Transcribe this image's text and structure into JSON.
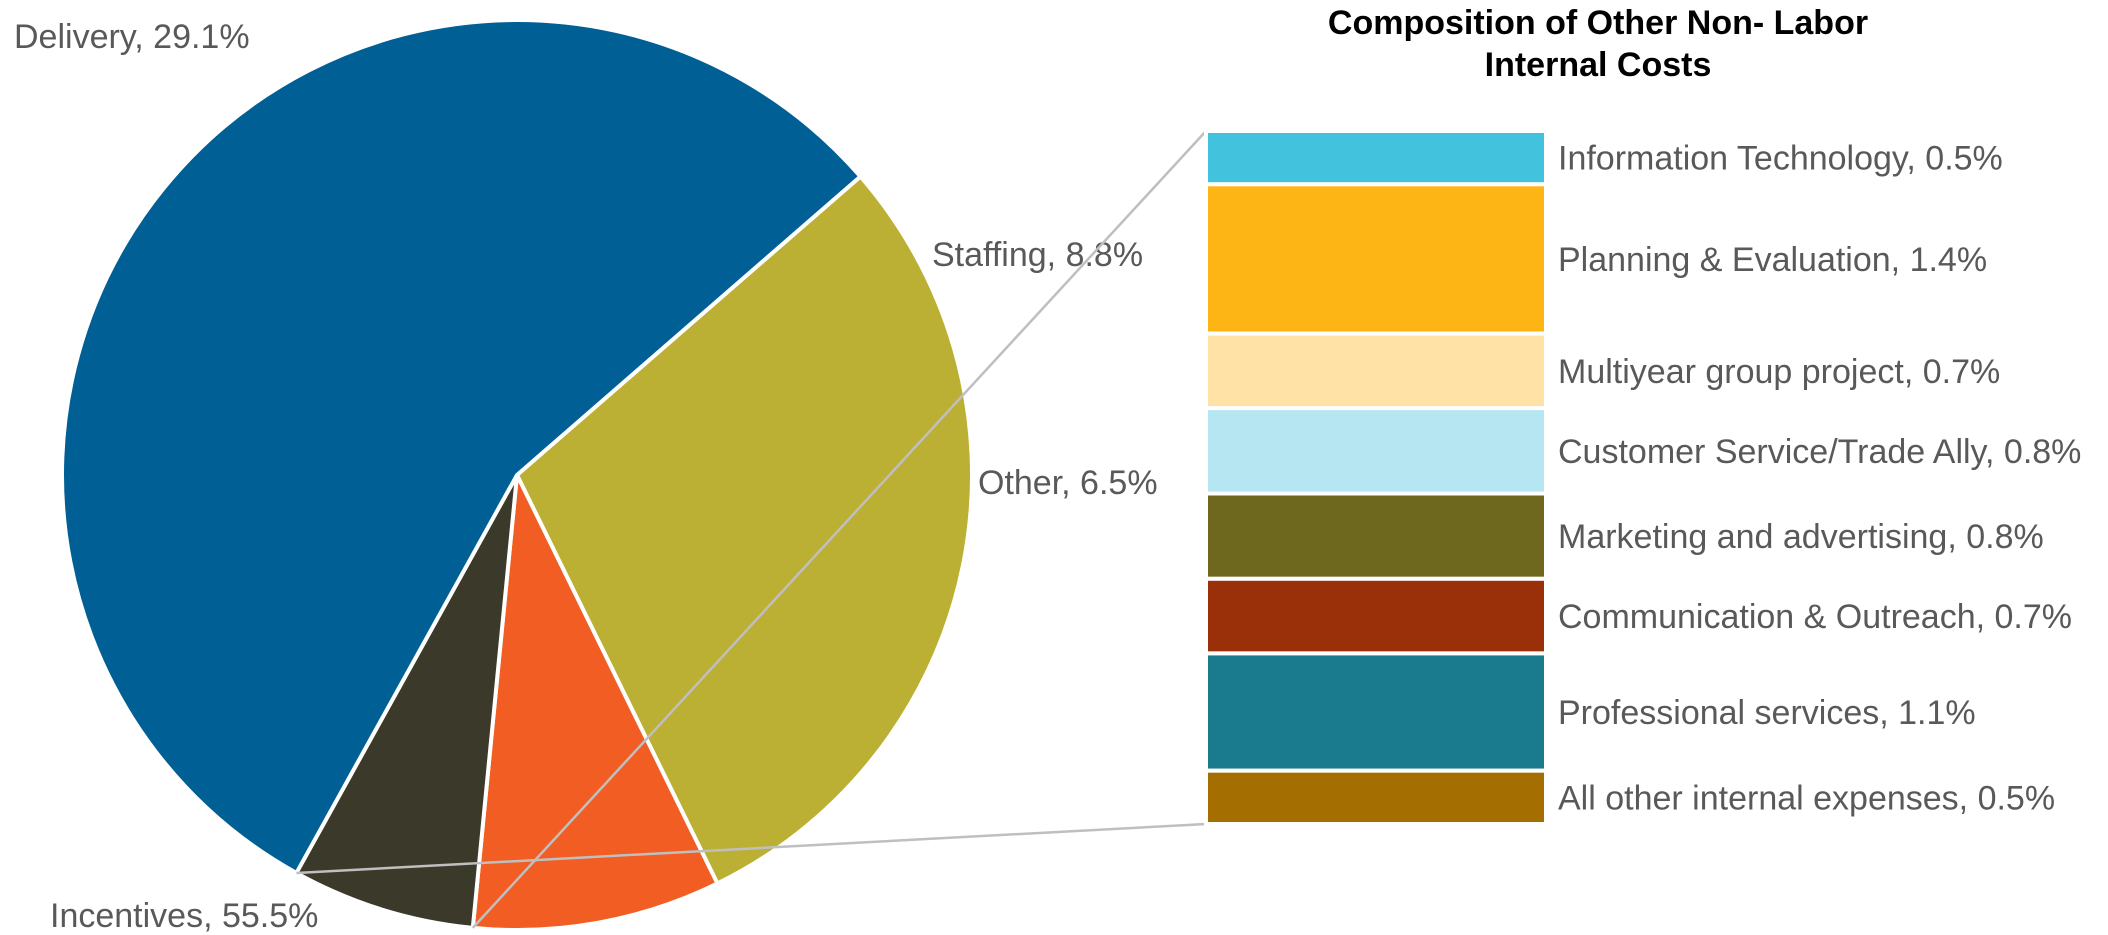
{
  "chart_data": [
    {
      "type": "pie",
      "title": "",
      "slices": [
        {
          "label": "Delivery",
          "value": 29.1,
          "display": "Delivery, 29.1%",
          "color": "#BBB033"
        },
        {
          "label": "Staffing",
          "value": 8.8,
          "display": "Staffing, 8.8%",
          "color": "#F15D22"
        },
        {
          "label": "Other",
          "value": 6.5,
          "display": "Other, 6.5%",
          "color": "#3A392A"
        },
        {
          "label": "Incentives",
          "value": 55.5,
          "display": "Incentives, 55.5%",
          "color": "#005F94"
        }
      ],
      "exploded_slice": "Other"
    },
    {
      "type": "bar",
      "orientation": "stacked-vertical",
      "title": "Composition of Other Non- Labor Internal Costs",
      "title_lines": [
        "Composition of Other Non- Labor",
        "Internal Costs"
      ],
      "segments": [
        {
          "label": "Information Technology",
          "value": 0.5,
          "display": "Information Technology, 0.5%",
          "color": "#42C2DD"
        },
        {
          "label": "Planning & Evaluation",
          "value": 1.4,
          "display": "Planning & Evaluation, 1.4%",
          "color": "#FDB515"
        },
        {
          "label": "Multiyear group project",
          "value": 0.7,
          "display": "Multiyear group project, 0.7%",
          "color": "#FEE2A6"
        },
        {
          "label": "Customer Service/Trade Ally",
          "value": 0.8,
          "display": "Customer Service/Trade Ally, 0.8%",
          "color": "#B6E6F2"
        },
        {
          "label": "Marketing and advertising",
          "value": 0.8,
          "display": "Marketing and advertising, 0.8%",
          "color": "#6E681F"
        },
        {
          "label": "Communication & Outreach",
          "value": 0.7,
          "display": "Communication & Outreach, 0.7%",
          "color": "#99300A"
        },
        {
          "label": "Professional services",
          "value": 1.1,
          "display": "Professional services, 1.1%",
          "color": "#1A7B8F"
        },
        {
          "label": "All other internal expenses",
          "value": 0.5,
          "display": "All other internal expenses, 0.5%",
          "color": "#A46F00"
        }
      ]
    }
  ]
}
